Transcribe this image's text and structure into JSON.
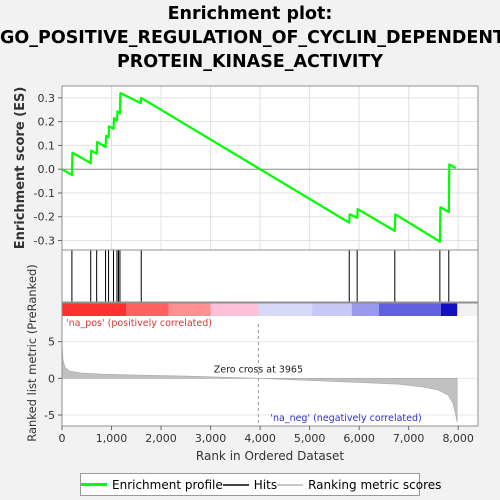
{
  "title": {
    "line1": "Enrichment plot:",
    "line2": "GO_POSITIVE_REGULATION_OF_CYCLIN_DEPENDENT_",
    "line3": "PROTEIN_KINASE_ACTIVITY"
  },
  "chart_data": {
    "type": "line",
    "es_panel": {
      "ylabel": "Enrichment score (ES)",
      "ylim": [
        -0.34,
        0.35
      ],
      "yticks": [
        "0.3",
        "0.2",
        "0.1",
        "0.0",
        "-0.1",
        "-0.2",
        "-0.3"
      ],
      "ytick_values": [
        0.3,
        0.2,
        0.1,
        0.0,
        -0.1,
        -0.2,
        -0.3
      ],
      "grid": true,
      "series": [
        {
          "name": "Enrichment profile",
          "color": "#00ff00",
          "x": [
            0,
            200,
            210,
            580,
            590,
            700,
            710,
            880,
            890,
            940,
            950,
            1040,
            1050,
            1110,
            1120,
            1170,
            1180,
            1590,
            1600,
            5800,
            5810,
            5960,
            5970,
            6720,
            6730,
            7630,
            7640,
            7810,
            7820,
            7950
          ],
          "y": [
            0.0,
            -0.025,
            0.07,
            0.025,
            0.078,
            0.065,
            0.115,
            0.093,
            0.14,
            0.135,
            0.18,
            0.17,
            0.215,
            0.205,
            0.243,
            0.235,
            0.32,
            0.278,
            0.3,
            -0.225,
            -0.19,
            -0.205,
            -0.168,
            -0.26,
            -0.19,
            -0.305,
            -0.16,
            -0.18,
            0.02,
            0.005
          ]
        }
      ]
    },
    "hits": {
      "name": "Hits",
      "x": [
        200,
        580,
        700,
        880,
        940,
        1040,
        1110,
        1140,
        1170,
        1600,
        5800,
        5960,
        6720,
        7630,
        7810
      ]
    },
    "rank_metric": {
      "name": "Ranking metric scores",
      "ylabel": "Ranked list metric (PreRanked)",
      "ylim": [
        -6.5,
        8.5
      ],
      "yticks": [
        "5",
        "0",
        "-5"
      ],
      "ytick_values": [
        5,
        0,
        -5
      ],
      "zero_cross_label": "Zero cross at 3965",
      "zero_cross": 3965,
      "pos_label": "'na_pos' (positively correlated)",
      "neg_label": "'na_neg' (negatively correlated)",
      "profile_x": [
        0,
        20,
        60,
        150,
        400,
        800,
        1500,
        2500,
        3965,
        5000,
        6000,
        6800,
        7300,
        7600,
        7800,
        7900,
        7950,
        7980
      ],
      "profile_y": [
        5.0,
        2.5,
        1.5,
        1.0,
        0.72,
        0.58,
        0.45,
        0.3,
        0.0,
        -0.3,
        -0.55,
        -0.8,
        -1.2,
        -1.6,
        -2.3,
        -3.5,
        -5.0,
        -6.0
      ]
    },
    "xaxis": {
      "xlabel": "Rank in Ordered Dataset",
      "xlim": [
        0,
        8400
      ],
      "xticks": [
        "0",
        "1,000",
        "2,000",
        "3,000",
        "4,000",
        "5,000",
        "6,000",
        "7,000",
        "8,000"
      ],
      "xtick_values": [
        0,
        1000,
        2000,
        3000,
        4000,
        5000,
        6000,
        7000,
        8000
      ]
    },
    "colorbar": {
      "x_end": 7980,
      "segments": [
        {
          "from": 0,
          "to": 1300,
          "color": "#ff3030"
        },
        {
          "from": 1300,
          "to": 2150,
          "color": "#ff6060"
        },
        {
          "from": 2150,
          "to": 3000,
          "color": "#ff9090"
        },
        {
          "from": 3000,
          "to": 3965,
          "color": "#ffc0d8"
        },
        {
          "from": 3965,
          "to": 5050,
          "color": "#d8d8f8"
        },
        {
          "from": 5050,
          "to": 5850,
          "color": "#c8c8f4"
        },
        {
          "from": 5850,
          "to": 6400,
          "color": "#9898ec"
        },
        {
          "from": 6400,
          "to": 7650,
          "color": "#6060e0"
        },
        {
          "from": 7650,
          "to": 7980,
          "color": "#1010c0"
        }
      ]
    }
  },
  "legend": {
    "items": [
      {
        "label": "Enrichment profile",
        "color": "#00ff00"
      },
      {
        "label": "Hits",
        "color": "#444444"
      },
      {
        "label": "Ranking metric scores",
        "color": "#c8c8c8"
      }
    ]
  }
}
